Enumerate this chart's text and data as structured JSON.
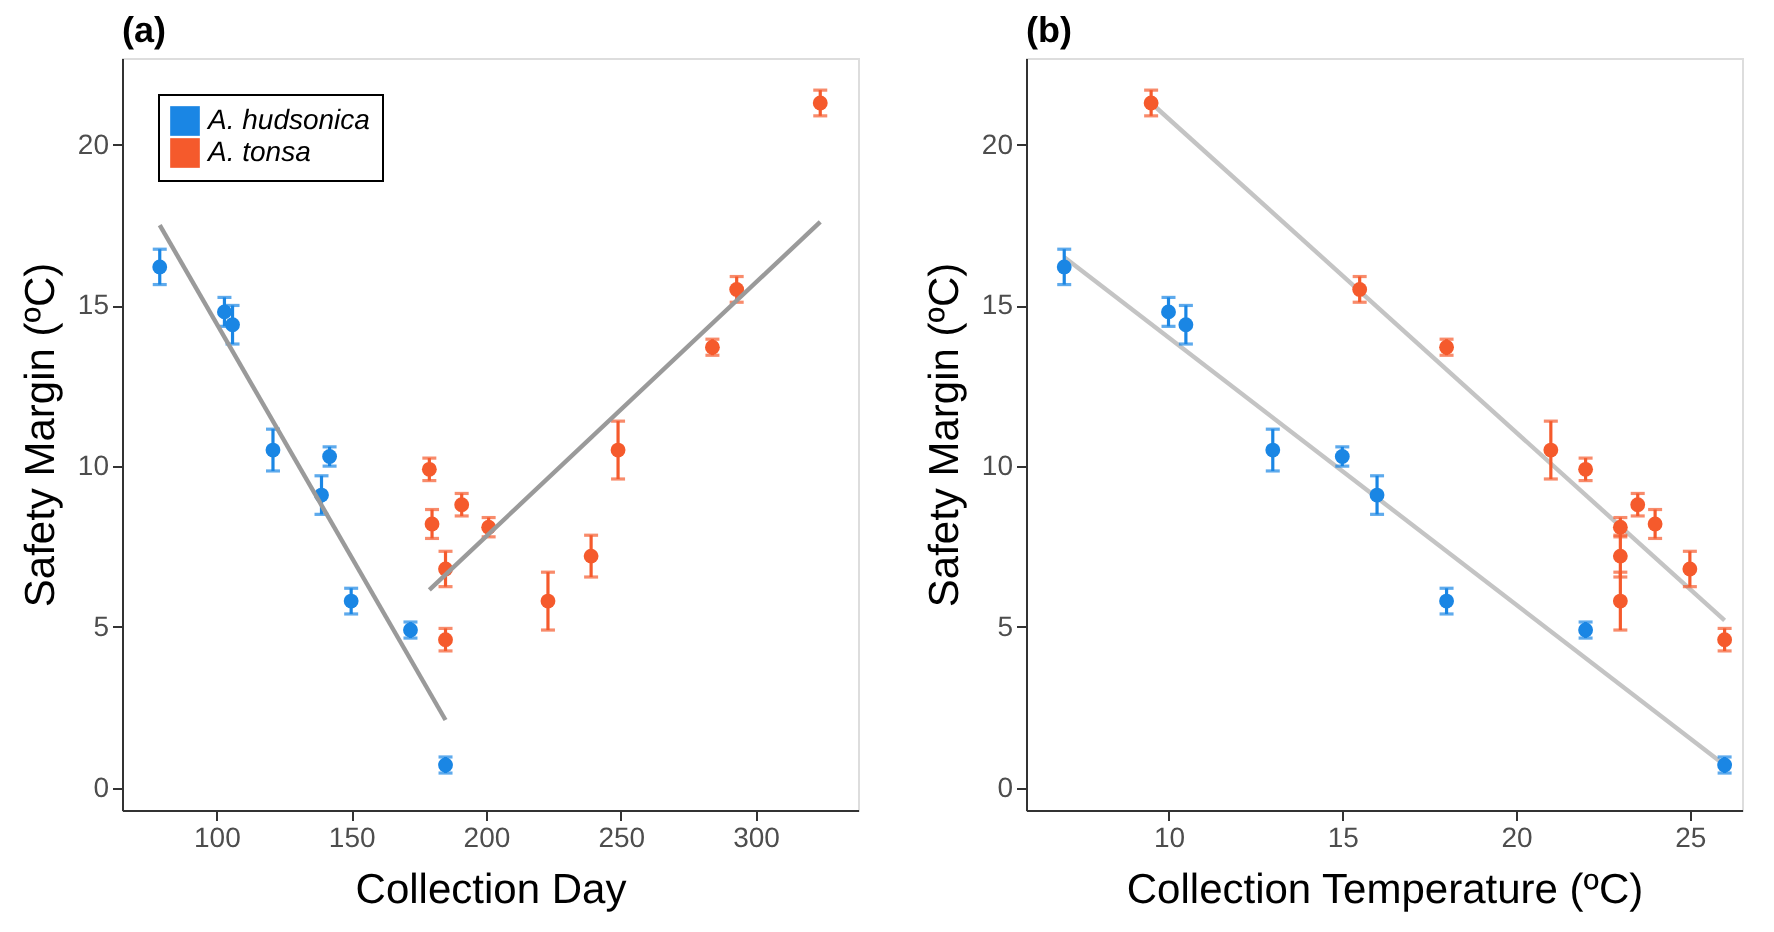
{
  "chart_data": [
    {
      "type": "scatter",
      "title": "(a)",
      "xlabel": "Collection Day",
      "ylabel": "Safety Margin (ºC)",
      "xlim": [
        65,
        338
      ],
      "ylim": [
        -0.7,
        22.7
      ],
      "xticks": [
        100,
        150,
        200,
        250,
        300
      ],
      "yticks": [
        0,
        5,
        10,
        15,
        20
      ],
      "grid": false,
      "legend": "top left",
      "series": [
        {
          "name": "A. hudsonica",
          "marker": "circle",
          "color": "#1a86e4",
          "x": [
            79,
            103,
            106,
            121,
            142,
            139,
            150,
            172,
            185
          ],
          "values": [
            16.2,
            14.8,
            14.4,
            10.5,
            10.3,
            9.1,
            5.8,
            4.9,
            0.7
          ],
          "errors": [
            0.55,
            0.45,
            0.6,
            0.65,
            0.3,
            0.6,
            0.4,
            0.25,
            0.25
          ]
        },
        {
          "name": "A. tonsa",
          "marker": "circle",
          "color": "#f55a2c",
          "x": [
            179,
            180,
            185,
            185,
            191,
            201,
            223,
            239,
            249,
            284,
            293,
            324
          ],
          "values": [
            9.9,
            8.2,
            6.8,
            4.6,
            8.8,
            8.1,
            5.8,
            7.2,
            10.5,
            13.7,
            15.5,
            21.3
          ],
          "errors": [
            0.35,
            0.45,
            0.55,
            0.35,
            0.35,
            0.3,
            0.9,
            0.65,
            0.9,
            0.25,
            0.4,
            0.4
          ]
        },
        {
          "type": "line",
          "marker": "none",
          "line_style": "solid",
          "color": "#9a9a9a",
          "x": [
            79,
            185
          ],
          "values": [
            17.5,
            2.1
          ]
        },
        {
          "type": "line",
          "marker": "none",
          "line_style": "solid",
          "color": "#9a9a9a",
          "x": [
            179,
            324
          ],
          "values": [
            6.15,
            17.6
          ]
        }
      ]
    },
    {
      "type": "scatter",
      "title": "(b)",
      "xlabel": "Collection Temperature (ºC)",
      "ylabel": "Safety Margin (ºC)",
      "xlim": [
        5.9,
        26.5
      ],
      "ylim": [
        -0.7,
        22.7
      ],
      "xticks": [
        10,
        15,
        20,
        25
      ],
      "yticks": [
        0,
        5,
        10,
        15,
        20
      ],
      "grid": false,
      "series": [
        {
          "type": "line",
          "marker": "none",
          "line_style": "solid",
          "color": "#c4c4c4",
          "x": [
            7,
            26
          ],
          "values": [
            16.5,
            0.7
          ]
        },
        {
          "type": "line",
          "marker": "none",
          "line_style": "solid",
          "color": "#c4c4c4",
          "x": [
            9.5,
            26
          ],
          "values": [
            21.3,
            5.2
          ]
        },
        {
          "marker": "circle",
          "color": "#1a86e4",
          "x": [
            7,
            10,
            10.5,
            13,
            15,
            16,
            18,
            22,
            26
          ],
          "values": [
            16.2,
            14.8,
            14.4,
            10.5,
            10.3,
            9.1,
            5.8,
            4.9,
            0.7
          ],
          "errors": [
            0.55,
            0.45,
            0.6,
            0.65,
            0.3,
            0.6,
            0.4,
            0.25,
            0.25
          ]
        },
        {
          "marker": "circle",
          "color": "#f55a2c",
          "x": [
            22,
            24,
            25,
            26,
            23.5,
            23,
            23,
            23,
            21,
            18,
            15.5,
            9.5
          ],
          "values": [
            9.9,
            8.2,
            6.8,
            4.6,
            8.8,
            8.1,
            5.8,
            7.2,
            10.5,
            13.7,
            15.5,
            21.3
          ],
          "errors": [
            0.35,
            0.45,
            0.55,
            0.35,
            0.35,
            0.3,
            0.9,
            0.65,
            0.9,
            0.25,
            0.4,
            0.4
          ]
        }
      ]
    }
  ]
}
